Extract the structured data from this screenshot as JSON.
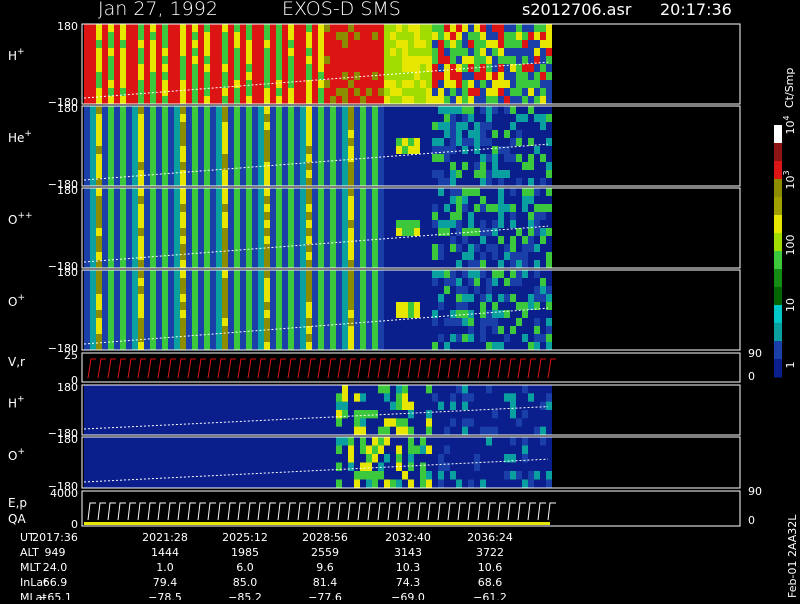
{
  "header": {
    "date": "Jan 27, 1992",
    "instrument": "EXOS-D SMS",
    "file": "s2012706.asr",
    "time": "20:17:36"
  },
  "panels": [
    {
      "label": {
        "name": "H",
        "charge": "+"
      },
      "ticks": [
        "180",
        "−180"
      ]
    },
    {
      "label": {
        "name": "He",
        "charge": "+"
      },
      "ticks": [
        "180",
        "−180"
      ]
    },
    {
      "label": {
        "name": "O",
        "charge": "++"
      },
      "ticks": [
        "180",
        "−180"
      ]
    },
    {
      "label": {
        "name": "O",
        "charge": "+"
      },
      "ticks": [
        "180",
        "−180"
      ]
    },
    {
      "label": {
        "name": "V,r"
      },
      "ticks": [
        "25",
        "0"
      ],
      "right_ticks": [
        "90",
        "0"
      ]
    },
    {
      "label": {
        "name": "H",
        "charge": "+"
      },
      "ticks": [
        "180",
        "−180"
      ]
    },
    {
      "label": {
        "name": "O",
        "charge": "+"
      },
      "ticks": [
        "180",
        "−180"
      ]
    },
    {
      "label": {
        "name": "E,p",
        "sub": "QA"
      },
      "ticks": [
        "4000",
        "0"
      ],
      "right_ticks": [
        "90",
        "0"
      ]
    }
  ],
  "colorbar": {
    "unit": "Ct/Smp",
    "labels": [
      {
        "base": "10",
        "exp": "4"
      },
      {
        "base": "10",
        "exp": "3"
      },
      {
        "base": "100"
      },
      {
        "base": "10"
      },
      {
        "base": "1"
      }
    ]
  },
  "table": {
    "rows": [
      [
        "UT",
        "2017:36",
        "2021:28",
        "2025:12",
        "2028:56",
        "2032:40",
        "2036:24"
      ],
      [
        "ALT",
        "949",
        "1444",
        "1985",
        "2559",
        "3143",
        "3722"
      ],
      [
        "MLT",
        "24.0",
        "1.0",
        "6.0",
        "9.6",
        "10.3",
        "10.6"
      ],
      [
        "InLat",
        "66.9",
        "79.4",
        "85.0",
        "81.4",
        "74.3",
        "68.6"
      ],
      [
        "MLat",
        "−65.1",
        "−78.5",
        "−85.2",
        "−77.6",
        "−69.0",
        "−61.2"
      ]
    ]
  },
  "footer": "Feb-01 2AA32L"
}
